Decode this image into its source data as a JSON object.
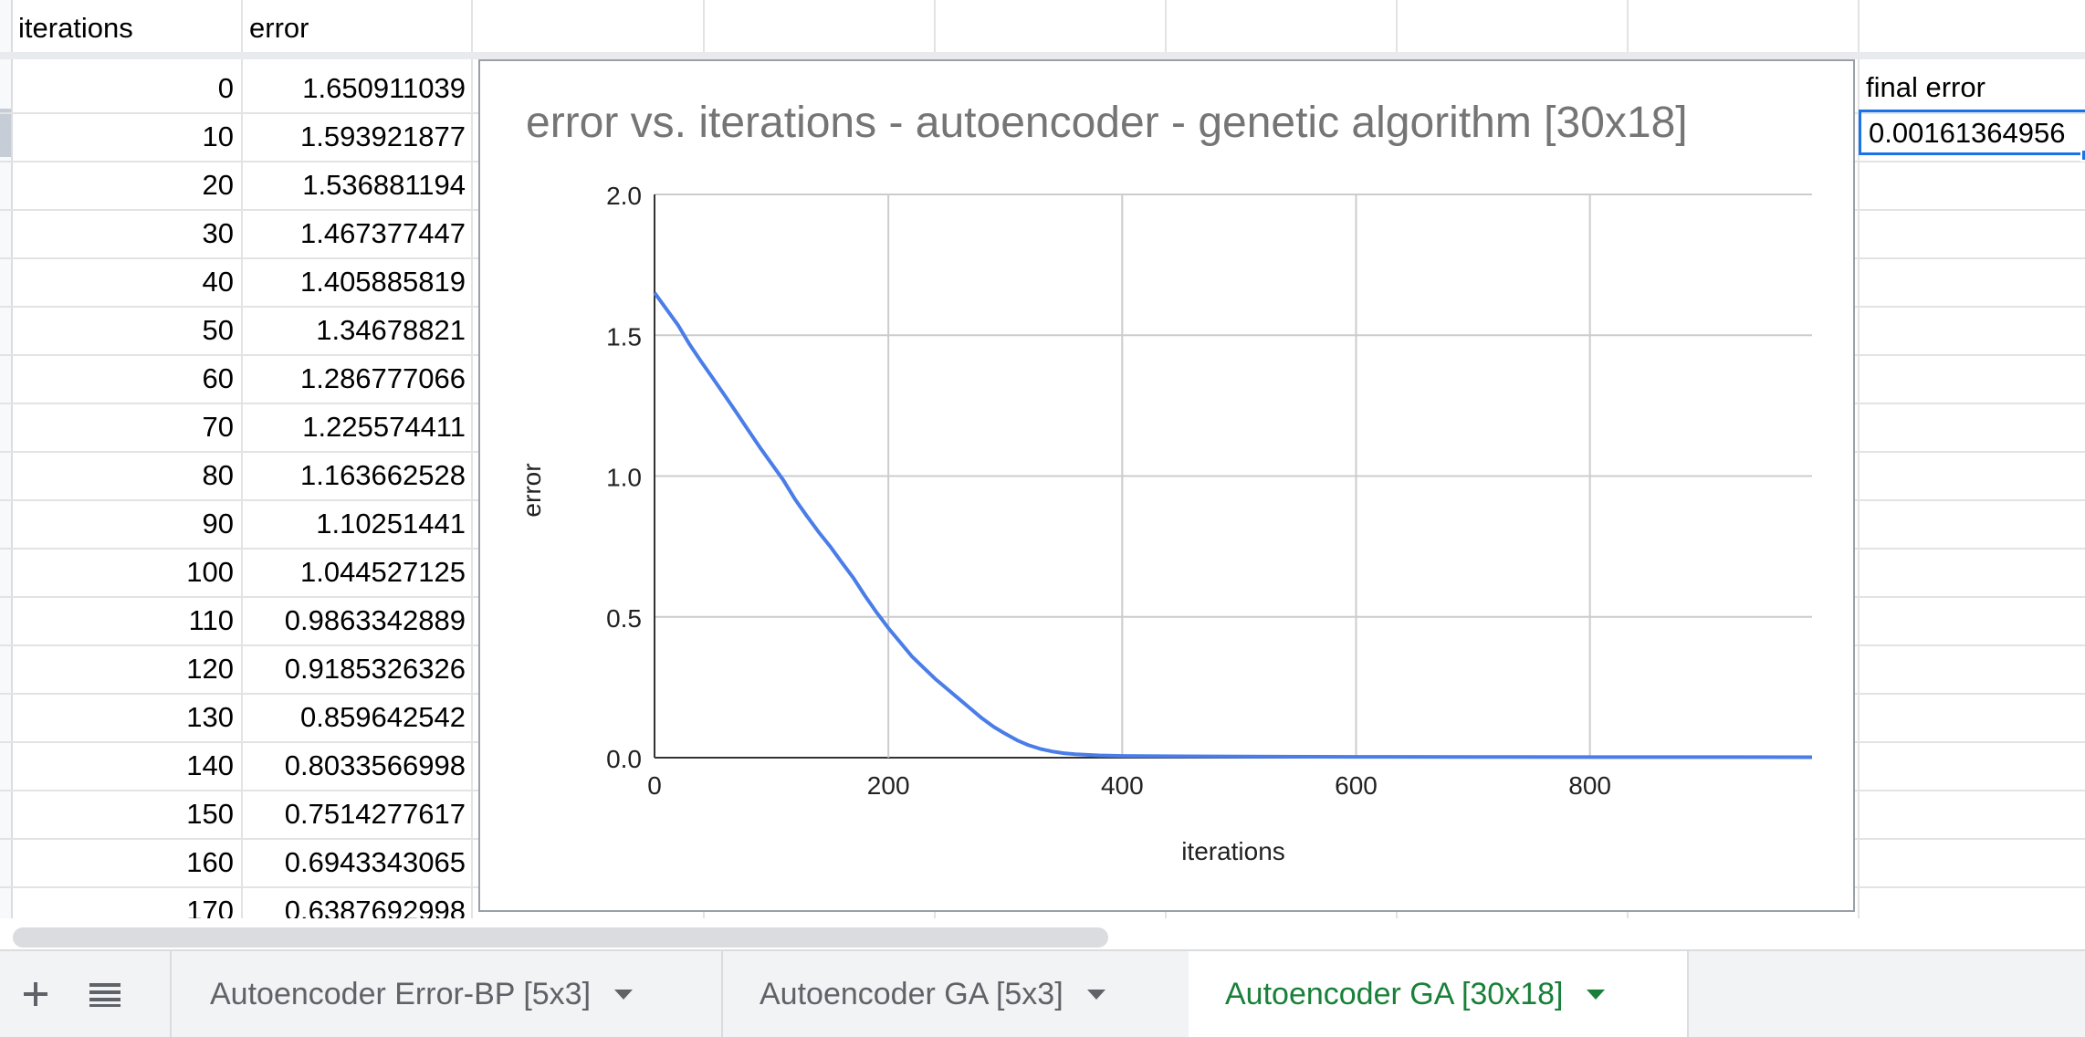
{
  "columns": {
    "a": "iterations",
    "b": "error"
  },
  "rows": [
    {
      "iter": "0",
      "err": "1.650911039"
    },
    {
      "iter": "10",
      "err": "1.593921877"
    },
    {
      "iter": "20",
      "err": "1.536881194"
    },
    {
      "iter": "30",
      "err": "1.467377447"
    },
    {
      "iter": "40",
      "err": "1.405885819"
    },
    {
      "iter": "50",
      "err": "1.34678821"
    },
    {
      "iter": "60",
      "err": "1.286777066"
    },
    {
      "iter": "70",
      "err": "1.225574411"
    },
    {
      "iter": "80",
      "err": "1.163662528"
    },
    {
      "iter": "90",
      "err": "1.10251441"
    },
    {
      "iter": "100",
      "err": "1.044527125"
    },
    {
      "iter": "110",
      "err": "0.9863342889"
    },
    {
      "iter": "120",
      "err": "0.9185326326"
    },
    {
      "iter": "130",
      "err": "0.859642542"
    },
    {
      "iter": "140",
      "err": "0.8033566998"
    },
    {
      "iter": "150",
      "err": "0.7514277617"
    },
    {
      "iter": "160",
      "err": "0.6943343065"
    },
    {
      "iter": "170",
      "err": "0.6387692998"
    }
  ],
  "final_error": {
    "label": "final error",
    "value": "0.00161364956"
  },
  "chart_data": {
    "type": "line",
    "title": "error vs. iterations - autoencoder - genetic algorithm [30x18]",
    "xlabel": "iterations",
    "ylabel": "error",
    "xlim": [
      0,
      990
    ],
    "ylim": [
      0,
      2.0
    ],
    "xticks": [
      "0",
      "200",
      "400",
      "600",
      "800"
    ],
    "yticks": [
      "0.0",
      "0.5",
      "1.0",
      "1.5",
      "2.0"
    ],
    "grid": true,
    "color": "#4a7de8",
    "x": [
      0,
      10,
      20,
      30,
      40,
      50,
      60,
      70,
      80,
      90,
      100,
      110,
      120,
      130,
      140,
      150,
      160,
      170,
      180,
      190,
      200,
      210,
      220,
      230,
      240,
      250,
      260,
      270,
      280,
      290,
      300,
      310,
      320,
      330,
      340,
      350,
      360,
      380,
      400,
      450,
      500,
      600,
      700,
      800,
      900,
      990
    ],
    "y": [
      1.6509,
      1.5939,
      1.5369,
      1.4674,
      1.4059,
      1.3468,
      1.2868,
      1.2256,
      1.1637,
      1.1025,
      1.0445,
      0.9863,
      0.9186,
      0.8596,
      0.8034,
      0.7514,
      0.6943,
      0.6388,
      0.575,
      0.515,
      0.46,
      0.41,
      0.36,
      0.32,
      0.28,
      0.245,
      0.21,
      0.175,
      0.14,
      0.11,
      0.085,
      0.062,
      0.044,
      0.031,
      0.022,
      0.016,
      0.012,
      0.008,
      0.006,
      0.005,
      0.004,
      0.003,
      0.0025,
      0.002,
      0.0018,
      0.0016
    ]
  },
  "tabs": [
    {
      "label": "Autoencoder Error-BP [5x3]"
    },
    {
      "label": "Autoencoder GA [5x3]"
    },
    {
      "label": "Autoencoder GA [30x18]"
    }
  ],
  "icons": {
    "add": "plus-icon",
    "all_sheets": "list-icon",
    "menu": "caret-down-icon"
  },
  "colors": {
    "accent": "#1a73e8",
    "active_tab": "#188038",
    "line": "#4a7de8"
  }
}
